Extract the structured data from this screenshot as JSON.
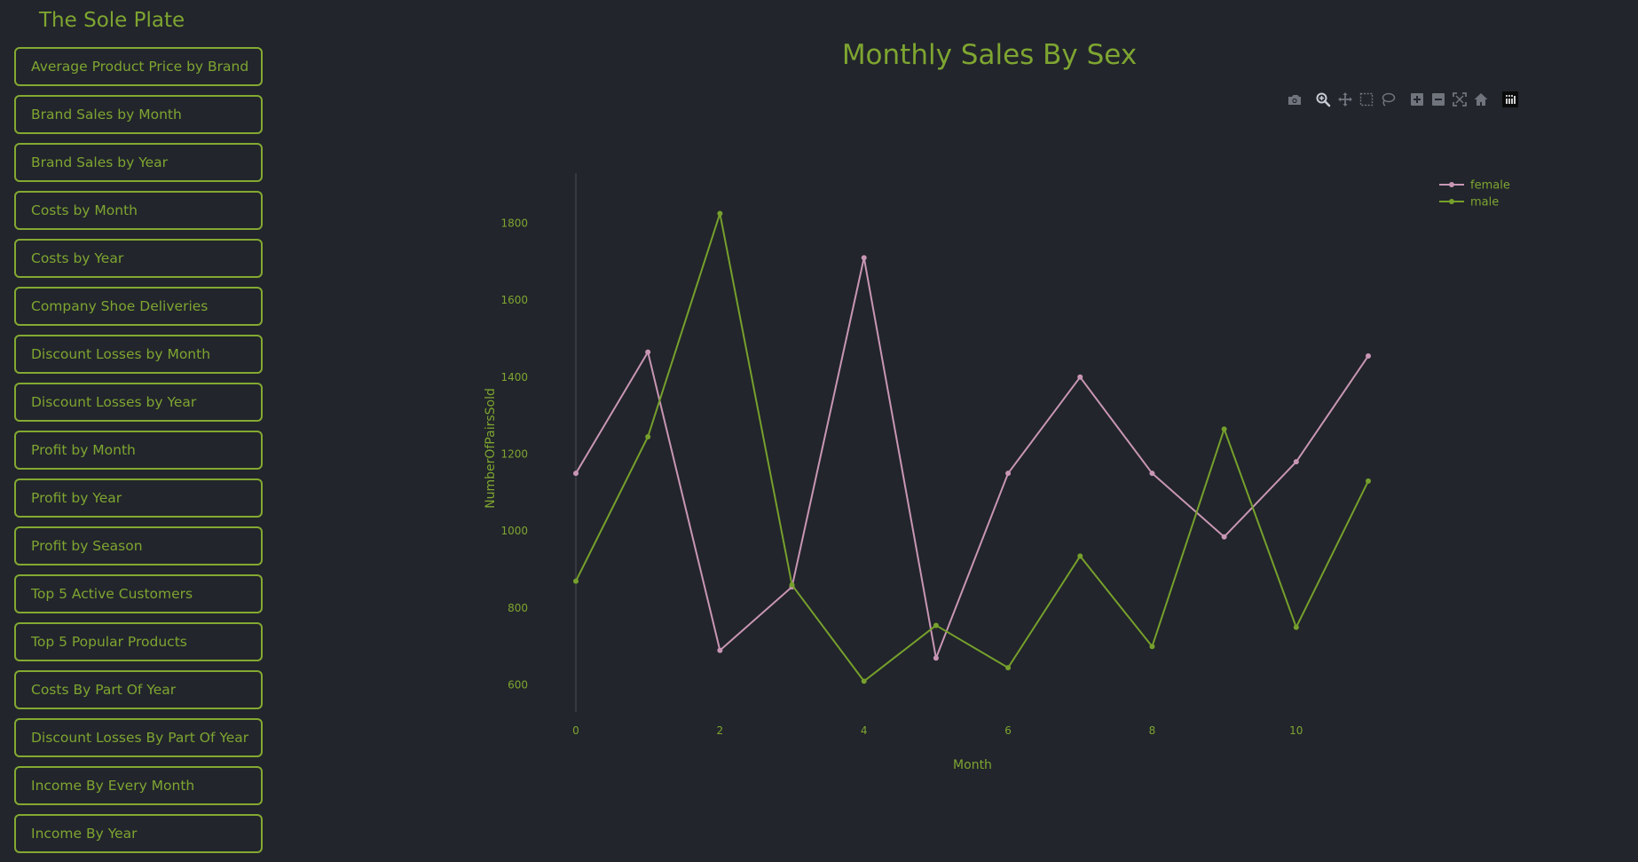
{
  "app": {
    "title": "The Sole Plate"
  },
  "sidebar": {
    "items": [
      {
        "label": "Average Product Price by Brand"
      },
      {
        "label": "Brand Sales by Month"
      },
      {
        "label": "Brand Sales by Year"
      },
      {
        "label": "Costs by Month"
      },
      {
        "label": "Costs by Year"
      },
      {
        "label": "Company Shoe Deliveries"
      },
      {
        "label": "Discount Losses by Month"
      },
      {
        "label": "Discount Losses by Year"
      },
      {
        "label": "Profit by Month"
      },
      {
        "label": "Profit by Year"
      },
      {
        "label": "Profit by Season"
      },
      {
        "label": "Top 5 Active Customers"
      },
      {
        "label": "Top 5 Popular Products"
      },
      {
        "label": "Costs By Part Of Year"
      },
      {
        "label": "Discount Losses By Part Of Year"
      },
      {
        "label": "Income By Every Month"
      },
      {
        "label": "Income By Year"
      }
    ]
  },
  "modebar": {
    "buttons": [
      {
        "name": "camera-icon",
        "active": false
      },
      {
        "name": "zoom-icon",
        "active": true
      },
      {
        "name": "pan-icon",
        "active": false
      },
      {
        "name": "box-select-icon",
        "active": false
      },
      {
        "name": "lasso-select-icon",
        "active": false
      },
      {
        "name": "zoom-in-icon",
        "active": false
      },
      {
        "name": "zoom-out-icon",
        "active": false
      },
      {
        "name": "autoscale-icon",
        "active": false
      },
      {
        "name": "reset-axes-icon",
        "active": false
      },
      {
        "name": "plotly-logo-icon",
        "active": false
      }
    ]
  },
  "colors": {
    "background": "#22252b",
    "accent": "#7ea531",
    "female": "#c896b4",
    "male": "#76a02c"
  },
  "chart_data": {
    "type": "line",
    "title": "Monthly Sales By Sex",
    "xlabel": "Month",
    "ylabel": "NumberOfPairsSold",
    "x": [
      0,
      1,
      2,
      3,
      4,
      5,
      6,
      7,
      8,
      9,
      10,
      11
    ],
    "xlim": [
      0,
      11
    ],
    "ylim": [
      530,
      1930
    ],
    "xticks": [
      0,
      2,
      4,
      6,
      8,
      10
    ],
    "yticks": [
      600,
      800,
      1000,
      1200,
      1400,
      1600,
      1800
    ],
    "grid": false,
    "legend_position": "top-right",
    "series": [
      {
        "name": "female",
        "color": "#c896b4",
        "values": [
          1150,
          1465,
          690,
          855,
          1710,
          670,
          1150,
          1400,
          1150,
          985,
          1180,
          1455
        ]
      },
      {
        "name": "male",
        "color": "#76a02c",
        "values": [
          870,
          1245,
          1825,
          860,
          610,
          755,
          645,
          935,
          700,
          1265,
          750,
          1130
        ]
      }
    ]
  }
}
